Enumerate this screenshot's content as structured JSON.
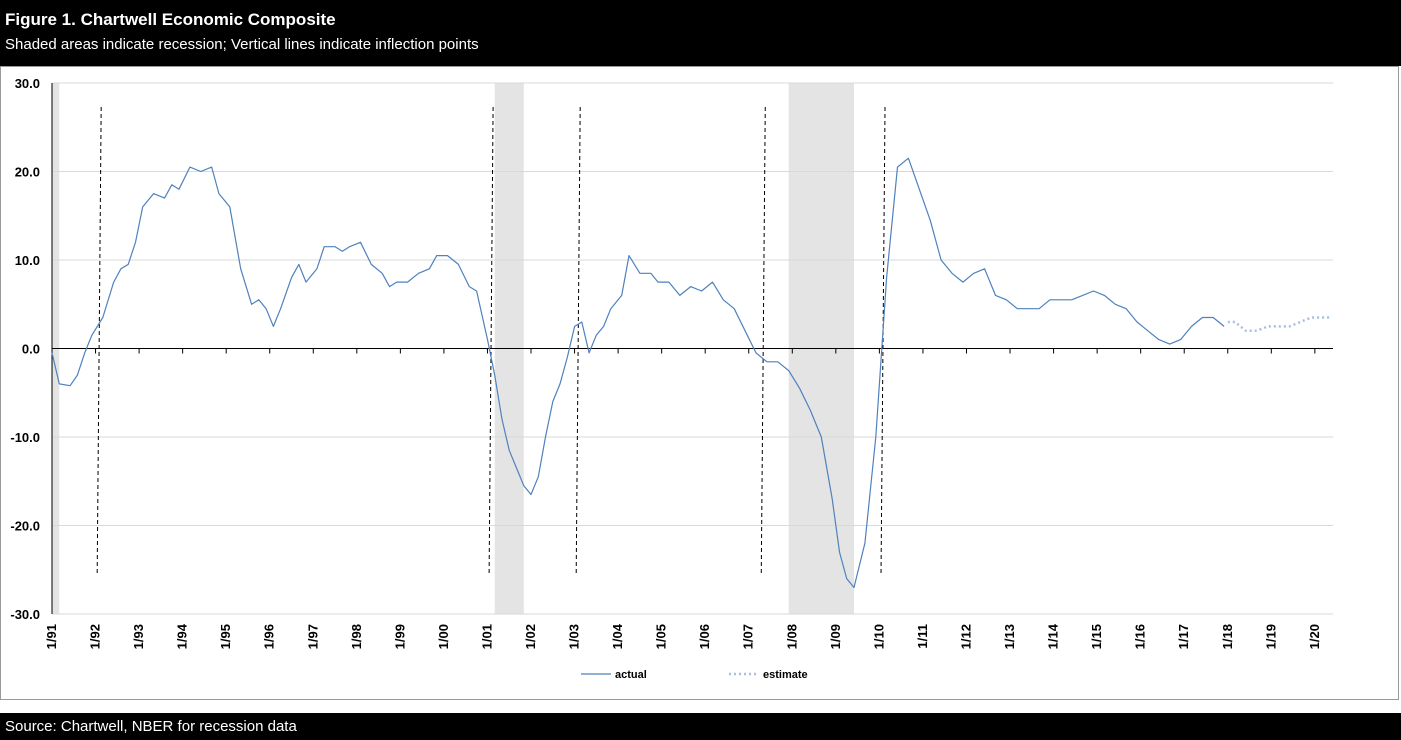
{
  "header": {
    "title": "Figure 1. Chartwell Economic Composite",
    "subtitle": "Shaded areas indicate recession; Vertical lines indicate inflection points"
  },
  "footer": {
    "source": "Source: Chartwell, NBER for recession data"
  },
  "colors": {
    "actual": "#4f81bd",
    "estimate": "#a8bfe0",
    "recession": "#e4e4e4",
    "grid": "#d9d9d9"
  },
  "chart_data": {
    "type": "line",
    "title": "Figure 1. Chartwell Economic Composite",
    "subtitle": "Shaded areas indicate recession; Vertical lines indicate inflection points",
    "xlabel": "",
    "ylabel": "",
    "ylim": [
      -30,
      30
    ],
    "xlim": [
      "1991-01",
      "2020-06"
    ],
    "y_ticks": [
      "30.0",
      "20.0",
      "10.0",
      "0.0",
      "-10.0",
      "-20.0",
      "-30.0"
    ],
    "x_ticks": [
      "1/91",
      "1/92",
      "1/93",
      "1/94",
      "1/95",
      "1/96",
      "1/97",
      "1/98",
      "1/99",
      "1/00",
      "1/01",
      "1/02",
      "1/03",
      "1/04",
      "1/05",
      "1/06",
      "1/07",
      "1/08",
      "1/09",
      "1/10",
      "1/11",
      "1/12",
      "1/13",
      "1/14",
      "1/15",
      "1/16",
      "1/17",
      "1/18",
      "1/19",
      "1/20"
    ],
    "grid": true,
    "legend_position": "bottom",
    "recessions": [
      {
        "start": "1991-01",
        "end": "1991-03"
      },
      {
        "start": "2001-03",
        "end": "2001-11"
      },
      {
        "start": "2007-12",
        "end": "2009-06"
      }
    ],
    "inflection_points": [
      "1992-02",
      "2001-02",
      "2003-02",
      "2007-05",
      "2010-02"
    ],
    "series": [
      {
        "name": "actual",
        "style": "solid",
        "points": [
          [
            "1991-01",
            -0.5
          ],
          [
            "1991-03",
            -4.0
          ],
          [
            "1991-06",
            -4.2
          ],
          [
            "1991-08",
            -3.0
          ],
          [
            "1991-10",
            -0.5
          ],
          [
            "1991-12",
            1.5
          ],
          [
            "1992-03",
            3.5
          ],
          [
            "1992-06",
            7.5
          ],
          [
            "1992-08",
            9.0
          ],
          [
            "1992-10",
            9.5
          ],
          [
            "1992-12",
            12.0
          ],
          [
            "1993-02",
            16.0
          ],
          [
            "1993-05",
            17.5
          ],
          [
            "1993-08",
            17.0
          ],
          [
            "1993-10",
            18.5
          ],
          [
            "1993-12",
            18.0
          ],
          [
            "1994-03",
            20.5
          ],
          [
            "1994-06",
            20.0
          ],
          [
            "1994-09",
            20.5
          ],
          [
            "1994-11",
            17.5
          ],
          [
            "1995-02",
            16.0
          ],
          [
            "1995-05",
            9.0
          ],
          [
            "1995-08",
            5.0
          ],
          [
            "1995-10",
            5.5
          ],
          [
            "1995-12",
            4.5
          ],
          [
            "1996-02",
            2.5
          ],
          [
            "1996-04",
            4.5
          ],
          [
            "1996-07",
            8.0
          ],
          [
            "1996-09",
            9.5
          ],
          [
            "1996-11",
            7.5
          ],
          [
            "1997-02",
            9.0
          ],
          [
            "1997-04",
            11.5
          ],
          [
            "1997-07",
            11.5
          ],
          [
            "1997-09",
            11.0
          ],
          [
            "1997-11",
            11.5
          ],
          [
            "1998-02",
            12.0
          ],
          [
            "1998-05",
            9.5
          ],
          [
            "1998-08",
            8.5
          ],
          [
            "1998-10",
            7.0
          ],
          [
            "1998-12",
            7.5
          ],
          [
            "1999-03",
            7.5
          ],
          [
            "1999-06",
            8.5
          ],
          [
            "1999-09",
            9.0
          ],
          [
            "1999-11",
            10.5
          ],
          [
            "2000-02",
            10.5
          ],
          [
            "2000-05",
            9.5
          ],
          [
            "2000-08",
            7.0
          ],
          [
            "2000-10",
            6.5
          ],
          [
            "2001-01",
            1.0
          ],
          [
            "2001-03",
            -3.0
          ],
          [
            "2001-05",
            -8.0
          ],
          [
            "2001-07",
            -11.5
          ],
          [
            "2001-09",
            -13.5
          ],
          [
            "2001-11",
            -15.5
          ],
          [
            "2002-01",
            -16.5
          ],
          [
            "2002-03",
            -14.5
          ],
          [
            "2002-05",
            -10.0
          ],
          [
            "2002-07",
            -6.0
          ],
          [
            "2002-09",
            -4.0
          ],
          [
            "2002-11",
            -1.0
          ],
          [
            "2003-01",
            2.5
          ],
          [
            "2003-03",
            3.0
          ],
          [
            "2003-05",
            -0.5
          ],
          [
            "2003-07",
            1.5
          ],
          [
            "2003-09",
            2.5
          ],
          [
            "2003-11",
            4.5
          ],
          [
            "2004-02",
            6.0
          ],
          [
            "2004-04",
            10.5
          ],
          [
            "2004-07",
            8.5
          ],
          [
            "2004-10",
            8.5
          ],
          [
            "2004-12",
            7.5
          ],
          [
            "2005-03",
            7.5
          ],
          [
            "2005-06",
            6.0
          ],
          [
            "2005-09",
            7.0
          ],
          [
            "2005-12",
            6.5
          ],
          [
            "2006-03",
            7.5
          ],
          [
            "2006-06",
            5.5
          ],
          [
            "2006-09",
            4.5
          ],
          [
            "2006-12",
            2.0
          ],
          [
            "2007-03",
            -0.5
          ],
          [
            "2007-06",
            -1.5
          ],
          [
            "2007-09",
            -1.5
          ],
          [
            "2007-12",
            -2.5
          ],
          [
            "2008-03",
            -4.5
          ],
          [
            "2008-06",
            -7.0
          ],
          [
            "2008-09",
            -10.0
          ],
          [
            "2008-12",
            -17.0
          ],
          [
            "2009-02",
            -23.0
          ],
          [
            "2009-04",
            -26.0
          ],
          [
            "2009-06",
            -27.0
          ],
          [
            "2009-09",
            -22.0
          ],
          [
            "2009-12",
            -10.0
          ],
          [
            "2010-03",
            8.0
          ],
          [
            "2010-06",
            20.5
          ],
          [
            "2010-09",
            21.5
          ],
          [
            "2010-12",
            18.0
          ],
          [
            "2011-03",
            14.5
          ],
          [
            "2011-06",
            10.0
          ],
          [
            "2011-09",
            8.5
          ],
          [
            "2011-12",
            7.5
          ],
          [
            "2012-03",
            8.5
          ],
          [
            "2012-06",
            9.0
          ],
          [
            "2012-09",
            6.0
          ],
          [
            "2012-12",
            5.5
          ],
          [
            "2013-03",
            4.5
          ],
          [
            "2013-06",
            4.5
          ],
          [
            "2013-09",
            4.5
          ],
          [
            "2013-12",
            5.5
          ],
          [
            "2014-03",
            5.5
          ],
          [
            "2014-06",
            5.5
          ],
          [
            "2014-09",
            6.0
          ],
          [
            "2014-12",
            6.5
          ],
          [
            "2015-03",
            6.0
          ],
          [
            "2015-06",
            5.0
          ],
          [
            "2015-09",
            4.5
          ],
          [
            "2015-12",
            3.0
          ],
          [
            "2016-03",
            2.0
          ],
          [
            "2016-06",
            1.0
          ],
          [
            "2016-09",
            0.5
          ],
          [
            "2016-12",
            1.0
          ],
          [
            "2017-03",
            2.5
          ],
          [
            "2017-06",
            3.5
          ],
          [
            "2017-09",
            3.5
          ],
          [
            "2017-12",
            2.5
          ]
        ]
      },
      {
        "name": "estimate",
        "style": "dotted",
        "points": [
          [
            "2018-01",
            3.0
          ],
          [
            "2018-03",
            3.0
          ],
          [
            "2018-06",
            2.0
          ],
          [
            "2018-09",
            2.0
          ],
          [
            "2018-12",
            2.5
          ],
          [
            "2019-03",
            2.5
          ],
          [
            "2019-06",
            2.5
          ],
          [
            "2019-09",
            3.0
          ],
          [
            "2019-12",
            3.5
          ],
          [
            "2020-03",
            3.5
          ],
          [
            "2020-05",
            3.5
          ]
        ]
      }
    ]
  }
}
